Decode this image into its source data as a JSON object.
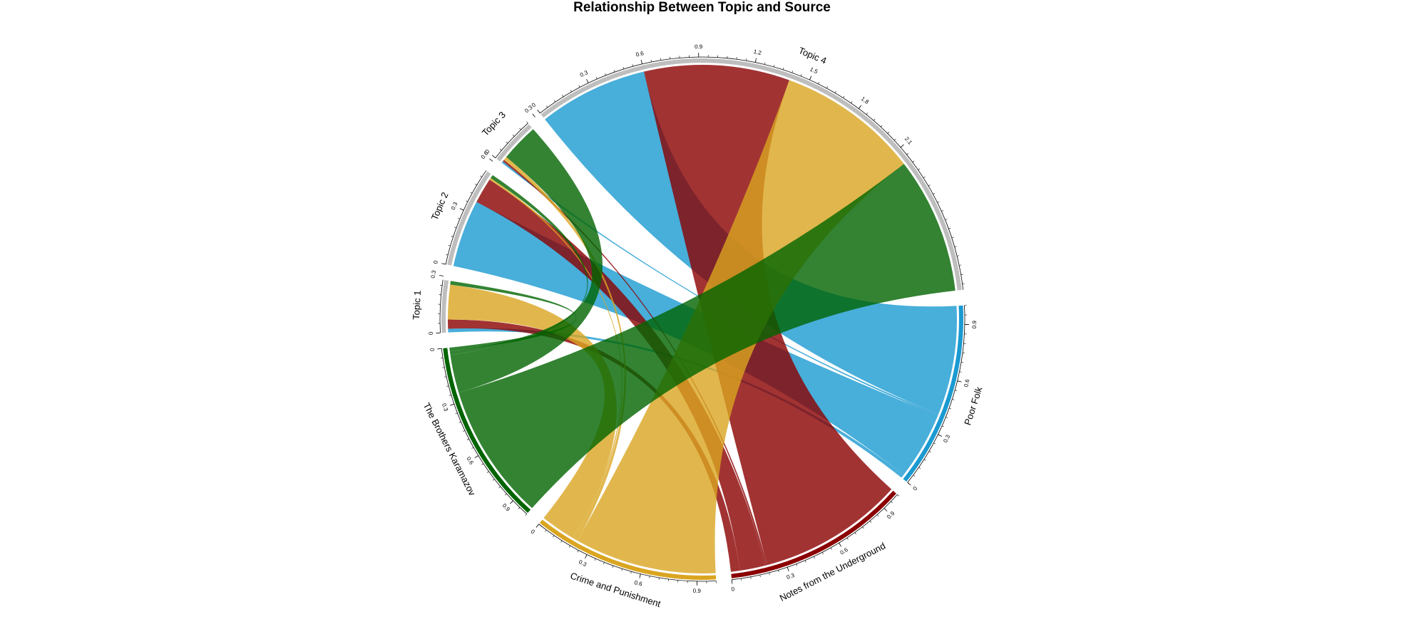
{
  "chart_data": {
    "type": "chord",
    "title": "Relationship Between Topic and Source",
    "topics": [
      {
        "name": "Topic 1",
        "ticks": [
          "0",
          "0.3"
        ]
      },
      {
        "name": "Topic 2",
        "ticks": [
          "0",
          "0.3",
          "0.6"
        ]
      },
      {
        "name": "Topic 3",
        "ticks": [
          "0",
          "0.3"
        ]
      },
      {
        "name": "Topic 4",
        "ticks": [
          "0",
          "0.3",
          "0.6",
          "0.9",
          "1.2",
          "1.5",
          "1.8",
          "2.1"
        ]
      }
    ],
    "sources": [
      {
        "name": "Poor Folk",
        "color": "#1a9ad1",
        "ticks": [
          "0",
          "0.3",
          "0.6",
          "0.9"
        ]
      },
      {
        "name": "Notes from the Underground",
        "color": "#8b0000",
        "ticks": [
          "0",
          "0.3",
          "0.6",
          "0.9"
        ]
      },
      {
        "name": "Crime and Punishment",
        "color": "#daa520",
        "ticks": [
          "0",
          "0.3",
          "0.6",
          "0.9"
        ]
      },
      {
        "name": "The Brothers Karamazov",
        "color": "#006400",
        "ticks": [
          "0",
          "0.3",
          "0.6",
          "0.9"
        ]
      }
    ],
    "topic_color": "#bebebe",
    "links": [
      {
        "source": "Poor Folk",
        "topic": "Topic 1",
        "value": 0.02
      },
      {
        "source": "Poor Folk",
        "topic": "Topic 2",
        "value": 0.37
      },
      {
        "source": "Poor Folk",
        "topic": "Topic 3",
        "value": 0.01
      },
      {
        "source": "Poor Folk",
        "topic": "Topic 4",
        "value": 0.6
      },
      {
        "source": "Notes from the Underground",
        "topic": "Topic 1",
        "value": 0.05
      },
      {
        "source": "Notes from the Underground",
        "topic": "Topic 2",
        "value": 0.14
      },
      {
        "source": "Notes from the Underground",
        "topic": "Topic 3",
        "value": 0.01
      },
      {
        "source": "Notes from the Underground",
        "topic": "Topic 4",
        "value": 0.8
      },
      {
        "source": "Crime and Punishment",
        "topic": "Topic 1",
        "value": 0.19
      },
      {
        "source": "Crime and Punishment",
        "topic": "Topic 2",
        "value": 0.01
      },
      {
        "source": "Crime and Punishment",
        "topic": "Topic 3",
        "value": 0.02
      },
      {
        "source": "Crime and Punishment",
        "topic": "Topic 4",
        "value": 0.78
      },
      {
        "source": "The Brothers Karamazov",
        "topic": "Topic 1",
        "value": 0.02
      },
      {
        "source": "The Brothers Karamazov",
        "topic": "Topic 2",
        "value": 0.02
      },
      {
        "source": "The Brothers Karamazov",
        "topic": "Topic 3",
        "value": 0.21
      },
      {
        "source": "The Brothers Karamazov",
        "topic": "Topic 4",
        "value": 0.75
      }
    ]
  }
}
